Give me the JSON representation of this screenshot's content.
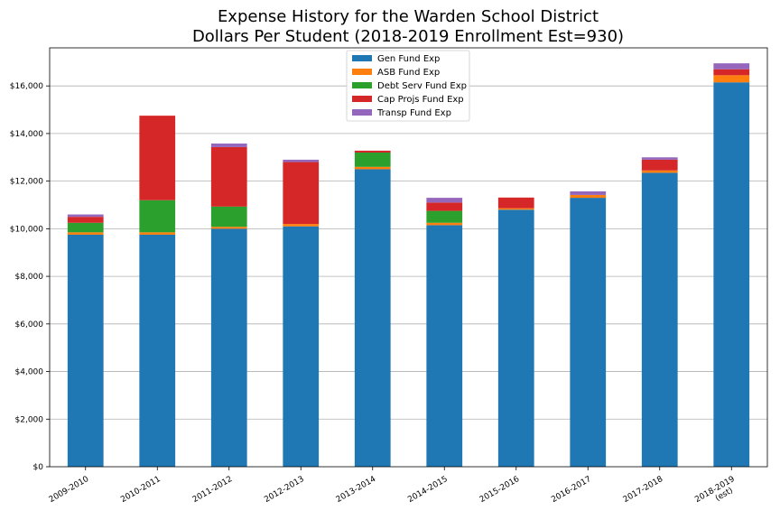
{
  "chart_data": {
    "type": "bar",
    "stacked": true,
    "title": "Expense History for the Warden School District",
    "subtitle": "Dollars Per Student (2018-2019 Enrollment Est=930)",
    "xlabel": "",
    "ylabel": "",
    "categories": [
      "2009-2010",
      "2010-2011",
      "2011-2012",
      "2012-2013",
      "2013-2014",
      "2014-2015",
      "2015-2016",
      "2016-2017",
      "2017-2018",
      "2018-2019\n(est)"
    ],
    "ylim": [
      0,
      17600
    ],
    "yticks": [
      0,
      2000,
      4000,
      6000,
      8000,
      10000,
      12000,
      14000,
      16000
    ],
    "ytick_labels": [
      "$0",
      "$2,000",
      "$4,000",
      "$6,000",
      "$8,000",
      "$10,000",
      "$12,000",
      "$14,000",
      "$16,000"
    ],
    "grid": "horizontal",
    "legend_position": "top-center",
    "series": [
      {
        "name": "Gen Fund Exp",
        "color": "#1f77b4",
        "values": [
          9750,
          9750,
          10000,
          10100,
          12500,
          10150,
          10800,
          11300,
          12350,
          16150
        ]
      },
      {
        "name": "ASB Fund Exp",
        "color": "#ff7f0e",
        "values": [
          100,
          100,
          80,
          100,
          100,
          100,
          60,
          120,
          100,
          300
        ]
      },
      {
        "name": "Debt Serv Fund Exp",
        "color": "#2ca02c",
        "values": [
          400,
          1350,
          850,
          0,
          600,
          500,
          0,
          0,
          0,
          0
        ]
      },
      {
        "name": "Cap Projs Fund Exp",
        "color": "#d62728",
        "values": [
          250,
          3550,
          2500,
          2600,
          80,
          350,
          450,
          0,
          450,
          250
        ]
      },
      {
        "name": "Transp Fund Exp",
        "color": "#9467bd",
        "values": [
          100,
          0,
          150,
          100,
          0,
          200,
          0,
          150,
          100,
          250
        ]
      }
    ]
  }
}
